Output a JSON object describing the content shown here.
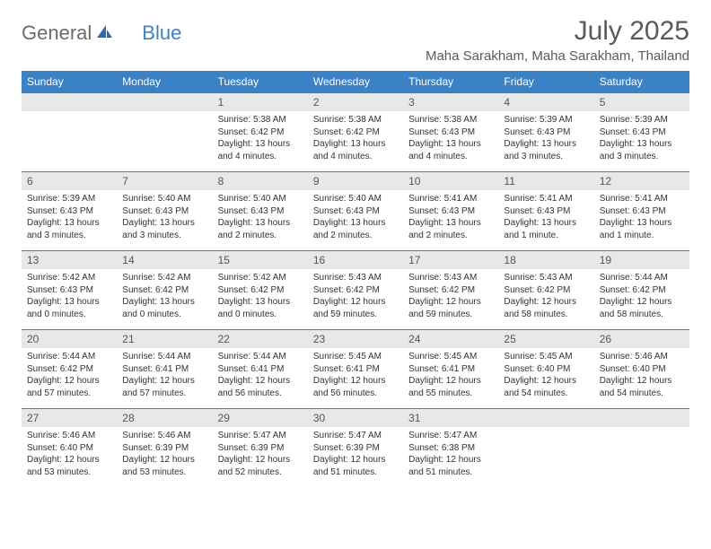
{
  "logo": {
    "text1": "General",
    "text2": "Blue"
  },
  "title": "July 2025",
  "location": "Maha Sarakham, Maha Sarakham, Thailand",
  "colors": {
    "accent": "#3b82c4",
    "header_bg": "#3b82c4",
    "header_text": "#ffffff",
    "daynum_bg": "#e8e8e8",
    "text": "#333333"
  },
  "day_headers": [
    "Sunday",
    "Monday",
    "Tuesday",
    "Wednesday",
    "Thursday",
    "Friday",
    "Saturday"
  ],
  "weeks": [
    [
      {
        "n": "",
        "sr": "",
        "ss": "",
        "dl": ""
      },
      {
        "n": "",
        "sr": "",
        "ss": "",
        "dl": ""
      },
      {
        "n": "1",
        "sr": "Sunrise: 5:38 AM",
        "ss": "Sunset: 6:42 PM",
        "dl": "Daylight: 13 hours and 4 minutes."
      },
      {
        "n": "2",
        "sr": "Sunrise: 5:38 AM",
        "ss": "Sunset: 6:42 PM",
        "dl": "Daylight: 13 hours and 4 minutes."
      },
      {
        "n": "3",
        "sr": "Sunrise: 5:38 AM",
        "ss": "Sunset: 6:43 PM",
        "dl": "Daylight: 13 hours and 4 minutes."
      },
      {
        "n": "4",
        "sr": "Sunrise: 5:39 AM",
        "ss": "Sunset: 6:43 PM",
        "dl": "Daylight: 13 hours and 3 minutes."
      },
      {
        "n": "5",
        "sr": "Sunrise: 5:39 AM",
        "ss": "Sunset: 6:43 PM",
        "dl": "Daylight: 13 hours and 3 minutes."
      }
    ],
    [
      {
        "n": "6",
        "sr": "Sunrise: 5:39 AM",
        "ss": "Sunset: 6:43 PM",
        "dl": "Daylight: 13 hours and 3 minutes."
      },
      {
        "n": "7",
        "sr": "Sunrise: 5:40 AM",
        "ss": "Sunset: 6:43 PM",
        "dl": "Daylight: 13 hours and 3 minutes."
      },
      {
        "n": "8",
        "sr": "Sunrise: 5:40 AM",
        "ss": "Sunset: 6:43 PM",
        "dl": "Daylight: 13 hours and 2 minutes."
      },
      {
        "n": "9",
        "sr": "Sunrise: 5:40 AM",
        "ss": "Sunset: 6:43 PM",
        "dl": "Daylight: 13 hours and 2 minutes."
      },
      {
        "n": "10",
        "sr": "Sunrise: 5:41 AM",
        "ss": "Sunset: 6:43 PM",
        "dl": "Daylight: 13 hours and 2 minutes."
      },
      {
        "n": "11",
        "sr": "Sunrise: 5:41 AM",
        "ss": "Sunset: 6:43 PM",
        "dl": "Daylight: 13 hours and 1 minute."
      },
      {
        "n": "12",
        "sr": "Sunrise: 5:41 AM",
        "ss": "Sunset: 6:43 PM",
        "dl": "Daylight: 13 hours and 1 minute."
      }
    ],
    [
      {
        "n": "13",
        "sr": "Sunrise: 5:42 AM",
        "ss": "Sunset: 6:43 PM",
        "dl": "Daylight: 13 hours and 0 minutes."
      },
      {
        "n": "14",
        "sr": "Sunrise: 5:42 AM",
        "ss": "Sunset: 6:42 PM",
        "dl": "Daylight: 13 hours and 0 minutes."
      },
      {
        "n": "15",
        "sr": "Sunrise: 5:42 AM",
        "ss": "Sunset: 6:42 PM",
        "dl": "Daylight: 13 hours and 0 minutes."
      },
      {
        "n": "16",
        "sr": "Sunrise: 5:43 AM",
        "ss": "Sunset: 6:42 PM",
        "dl": "Daylight: 12 hours and 59 minutes."
      },
      {
        "n": "17",
        "sr": "Sunrise: 5:43 AM",
        "ss": "Sunset: 6:42 PM",
        "dl": "Daylight: 12 hours and 59 minutes."
      },
      {
        "n": "18",
        "sr": "Sunrise: 5:43 AM",
        "ss": "Sunset: 6:42 PM",
        "dl": "Daylight: 12 hours and 58 minutes."
      },
      {
        "n": "19",
        "sr": "Sunrise: 5:44 AM",
        "ss": "Sunset: 6:42 PM",
        "dl": "Daylight: 12 hours and 58 minutes."
      }
    ],
    [
      {
        "n": "20",
        "sr": "Sunrise: 5:44 AM",
        "ss": "Sunset: 6:42 PM",
        "dl": "Daylight: 12 hours and 57 minutes."
      },
      {
        "n": "21",
        "sr": "Sunrise: 5:44 AM",
        "ss": "Sunset: 6:41 PM",
        "dl": "Daylight: 12 hours and 57 minutes."
      },
      {
        "n": "22",
        "sr": "Sunrise: 5:44 AM",
        "ss": "Sunset: 6:41 PM",
        "dl": "Daylight: 12 hours and 56 minutes."
      },
      {
        "n": "23",
        "sr": "Sunrise: 5:45 AM",
        "ss": "Sunset: 6:41 PM",
        "dl": "Daylight: 12 hours and 56 minutes."
      },
      {
        "n": "24",
        "sr": "Sunrise: 5:45 AM",
        "ss": "Sunset: 6:41 PM",
        "dl": "Daylight: 12 hours and 55 minutes."
      },
      {
        "n": "25",
        "sr": "Sunrise: 5:45 AM",
        "ss": "Sunset: 6:40 PM",
        "dl": "Daylight: 12 hours and 54 minutes."
      },
      {
        "n": "26",
        "sr": "Sunrise: 5:46 AM",
        "ss": "Sunset: 6:40 PM",
        "dl": "Daylight: 12 hours and 54 minutes."
      }
    ],
    [
      {
        "n": "27",
        "sr": "Sunrise: 5:46 AM",
        "ss": "Sunset: 6:40 PM",
        "dl": "Daylight: 12 hours and 53 minutes."
      },
      {
        "n": "28",
        "sr": "Sunrise: 5:46 AM",
        "ss": "Sunset: 6:39 PM",
        "dl": "Daylight: 12 hours and 53 minutes."
      },
      {
        "n": "29",
        "sr": "Sunrise: 5:47 AM",
        "ss": "Sunset: 6:39 PM",
        "dl": "Daylight: 12 hours and 52 minutes."
      },
      {
        "n": "30",
        "sr": "Sunrise: 5:47 AM",
        "ss": "Sunset: 6:39 PM",
        "dl": "Daylight: 12 hours and 51 minutes."
      },
      {
        "n": "31",
        "sr": "Sunrise: 5:47 AM",
        "ss": "Sunset: 6:38 PM",
        "dl": "Daylight: 12 hours and 51 minutes."
      },
      {
        "n": "",
        "sr": "",
        "ss": "",
        "dl": ""
      },
      {
        "n": "",
        "sr": "",
        "ss": "",
        "dl": ""
      }
    ]
  ]
}
